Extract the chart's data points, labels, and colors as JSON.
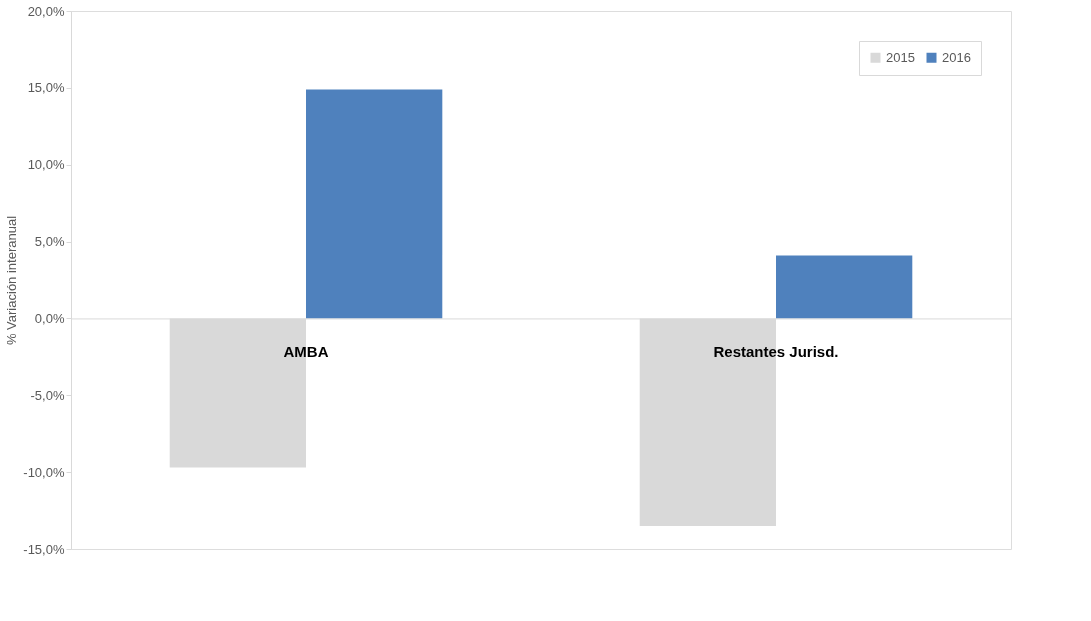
{
  "chart_data": {
    "type": "bar",
    "ylabel": "% Variación interanual",
    "categories": [
      "AMBA",
      "Restantes Jurisd."
    ],
    "series": [
      {
        "name": "2015",
        "color": "#d9d9d9",
        "values": [
          -9.7,
          -13.5
        ]
      },
      {
        "name": "2016",
        "color": "#4f81bd",
        "values": [
          14.9,
          4.1
        ]
      }
    ],
    "ylim": [
      -15,
      20
    ],
    "yticks": [
      {
        "value": -15,
        "label": "-15,0%"
      },
      {
        "value": -10,
        "label": "-10,0%"
      },
      {
        "value": -5,
        "label": "-5,0%"
      },
      {
        "value": 0,
        "label": "0,0%"
      },
      {
        "value": 5,
        "label": "5,0%"
      },
      {
        "value": 10,
        "label": "10,0%"
      },
      {
        "value": 15,
        "label": "15,0%"
      },
      {
        "value": 20,
        "label": "20,0%"
      }
    ],
    "grid": false,
    "legend": "top right"
  }
}
